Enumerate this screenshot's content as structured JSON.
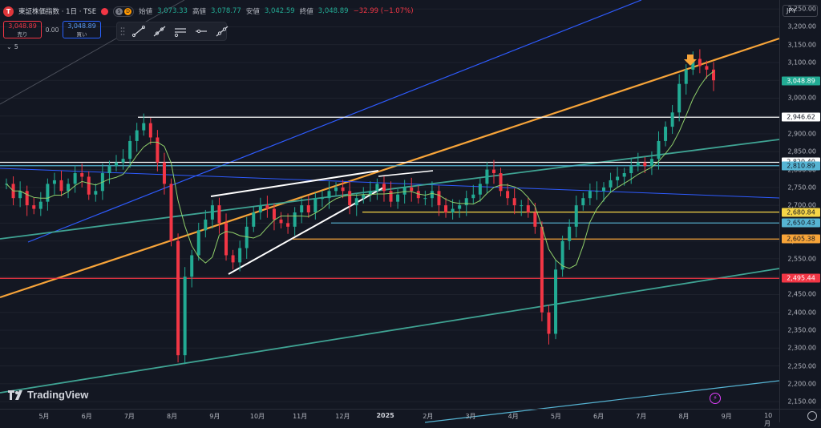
{
  "header": {
    "symbol_icon": "T",
    "title": "東証株価指数 · 1日 · TSE",
    "pill_left": "",
    "pill_right": "D",
    "open_label": "始値",
    "open_value": "3,073.33",
    "high_label": "高値",
    "high_value": "3,078.77",
    "low_label": "安値",
    "low_value": "3,042.59",
    "close_label": "終値",
    "close_value": "3,048.89",
    "change": "−32.99 (−1.07%)"
  },
  "trade": {
    "sell_price": "3,048.89",
    "sell_label": "売り",
    "spread": "0.00",
    "buy_price": "3,048.89",
    "buy_label": "買い"
  },
  "indicators": {
    "collapse_label": "5"
  },
  "currency": "JPY",
  "logo": "TradingView",
  "colors": {
    "background": "#131722",
    "up": "#22ab94",
    "down": "#f23645",
    "orange_channel": "#f7a439",
    "blue_channel": "#2e5bff",
    "teal_channel": "#3fa393",
    "light_blue": "#56b4d3"
  },
  "price_axis": {
    "ticks": [
      "3,250.00",
      "3,200.00",
      "3,150.00",
      "3,100.00",
      "3,050.00",
      "3,000.00",
      "2,950.00",
      "2,900.00",
      "2,850.00",
      "2,800.00",
      "2,750.00",
      "2,700.00",
      "2,650.00",
      "2,600.00",
      "2,550.00",
      "2,500.00",
      "2,450.00",
      "2,400.00",
      "2,350.00",
      "2,300.00",
      "2,250.00",
      "2,200.00",
      "2,150.00"
    ],
    "tick_values": [
      3250,
      3200,
      3150,
      3100,
      3050,
      3000,
      2950,
      2900,
      2850,
      2800,
      2750,
      2700,
      2650,
      2600,
      2550,
      2500,
      2450,
      2400,
      2350,
      2300,
      2250,
      2200,
      2150
    ],
    "labels": [
      {
        "text": "3,048.89",
        "value": 3048.89,
        "bg": "#22ab94",
        "fg": "#ffffff"
      },
      {
        "text": "2,946.62",
        "value": 2946.62,
        "bg": "#ffffff",
        "fg": "#131722"
      },
      {
        "text": "2,820.40",
        "value": 2820.4,
        "bg": "#ffffff",
        "fg": "#131722"
      },
      {
        "text": "2,810.89",
        "value": 2810.89,
        "bg": "#56b4d3",
        "fg": "#131722"
      },
      {
        "text": "2,680.84",
        "value": 2680.84,
        "bg": "#f5d547",
        "fg": "#131722"
      },
      {
        "text": "2,650.43",
        "value": 2650.43,
        "bg": "#56b4d3",
        "fg": "#131722"
      },
      {
        "text": "2,605.38",
        "value": 2605.38,
        "bg": "#f7a439",
        "fg": "#131722"
      },
      {
        "text": "2,495.44",
        "value": 2495.44,
        "bg": "#f23645",
        "fg": "#ffffff"
      }
    ]
  },
  "time_axis": {
    "ticks": [
      {
        "label": "5月",
        "bold": false
      },
      {
        "label": "6月",
        "bold": false
      },
      {
        "label": "7月",
        "bold": false
      },
      {
        "label": "8月",
        "bold": false
      },
      {
        "label": "9月",
        "bold": false
      },
      {
        "label": "10月",
        "bold": false
      },
      {
        "label": "11月",
        "bold": false
      },
      {
        "label": "12月",
        "bold": false
      },
      {
        "label": "2025",
        "bold": true
      },
      {
        "label": "2月",
        "bold": false
      },
      {
        "label": "3月",
        "bold": false
      },
      {
        "label": "4月",
        "bold": false
      },
      {
        "label": "5月",
        "bold": false
      },
      {
        "label": "6月",
        "bold": false
      },
      {
        "label": "7月",
        "bold": false
      },
      {
        "label": "8月",
        "bold": false
      },
      {
        "label": "9月",
        "bold": false
      },
      {
        "label": "10月",
        "bold": false
      }
    ]
  },
  "chart_data": {
    "type": "candlestick",
    "title": "東証株価指数 · 1日 · TSE",
    "ylim": [
      2130,
      3275
    ],
    "x_categories": [
      "5月",
      "6月",
      "7月",
      "8月",
      "9月",
      "10月",
      "11月",
      "12月",
      "2025",
      "2月",
      "3月",
      "4月",
      "5月",
      "6月",
      "7月",
      "8月",
      "9月",
      "10月"
    ],
    "closes": [
      2760,
      2720,
      2740,
      2700,
      2690,
      2710,
      2760,
      2770,
      2740,
      2760,
      2790,
      2780,
      2730,
      2740,
      2790,
      2810,
      2820,
      2830,
      2880,
      2910,
      2930,
      2890,
      2820,
      2760,
      2600,
      2280,
      2500,
      2560,
      2630,
      2660,
      2700,
      2650,
      2560,
      2540,
      2580,
      2640,
      2680,
      2700,
      2690,
      2660,
      2650,
      2640,
      2680,
      2700,
      2680,
      2720,
      2720,
      2740,
      2750,
      2740,
      2700,
      2720,
      2730,
      2740,
      2760,
      2740,
      2710,
      2730,
      2750,
      2740,
      2720,
      2720,
      2740,
      2700,
      2680,
      2690,
      2700,
      2720,
      2730,
      2760,
      2800,
      2790,
      2740,
      2720,
      2700,
      2700,
      2680,
      2640,
      2400,
      2340,
      2520,
      2600,
      2640,
      2700,
      2720,
      2740,
      2740,
      2750,
      2770,
      2780,
      2790,
      2810,
      2820,
      2810,
      2830,
      2880,
      2920,
      2960,
      3040,
      3080,
      3110,
      3090,
      3080,
      3050
    ],
    "horizontal_levels": [
      2946.62,
      2820.4,
      2810.89,
      2680.84,
      2650.43,
      2605.38,
      2495.44
    ],
    "annotations": [
      "down-arrow-marker"
    ]
  }
}
